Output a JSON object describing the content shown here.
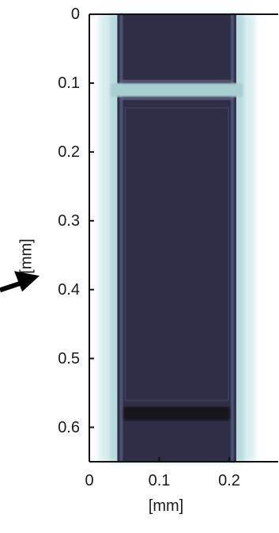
{
  "figure": {
    "y_axis": {
      "label": "[mm]",
      "ticks": [
        "0",
        "0.1",
        "0.2",
        "0.3",
        "0.4",
        "0.5",
        "0.6"
      ],
      "range": [
        0,
        0.65
      ],
      "direction": "down"
    },
    "x_axis": {
      "label": "[mm]",
      "ticks": [
        "0",
        "0.1",
        "0.2"
      ],
      "range": [
        0,
        0.27
      ]
    },
    "arrow_y_value": 0.38,
    "features": {
      "outer_strip_x": [
        0.04,
        0.21
      ],
      "horizontal_band_y": [
        0.1,
        0.12
      ],
      "dark_band_y": [
        0.57,
        0.59
      ]
    },
    "colors": {
      "background_glow": "#dbeff0",
      "strip": "#2e2f46",
      "strip_edge": "#53587a",
      "band": "#a7cfd0",
      "dark_band": "#14141c",
      "axis": "#111111",
      "arrow": "#000000"
    }
  }
}
